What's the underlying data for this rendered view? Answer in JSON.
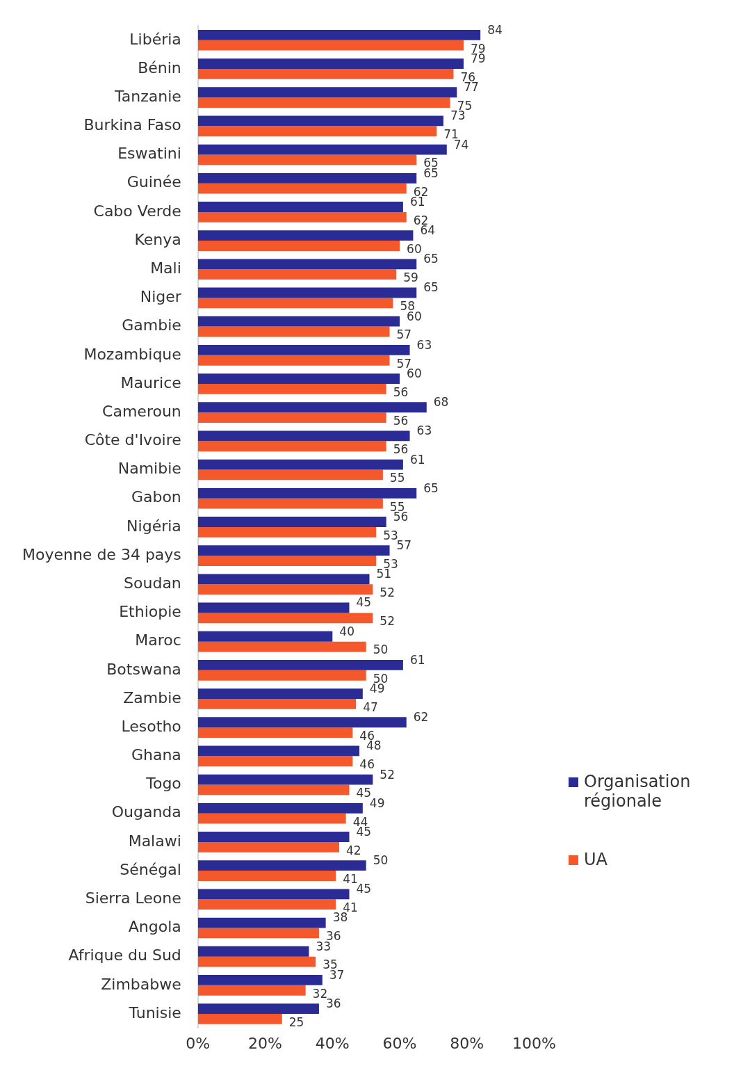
{
  "chart_data": {
    "type": "bar",
    "orientation": "horizontal",
    "categories": [
      "Libéria",
      "Bénin",
      "Tanzanie",
      "Burkina Faso",
      "Eswatini",
      "Guinée",
      "Cabo Verde",
      "Kenya",
      "Mali",
      "Niger",
      "Gambie",
      "Mozambique",
      "Maurice",
      "Cameroun",
      "Côte d'Ivoire",
      "Namibie",
      "Gabon",
      "Nigéria",
      "Moyenne de 34 pays",
      "Soudan",
      "Ethiopie",
      "Maroc",
      "Botswana",
      "Zambie",
      "Lesotho",
      "Ghana",
      "Togo",
      "Ouganda",
      "Malawi",
      "Sénégal",
      "Sierra Leone",
      "Angola",
      "Afrique du Sud",
      "Zimbabwe",
      "Tunisie"
    ],
    "series": [
      {
        "name": "Organisation régionale",
        "color": "#2b2b96",
        "values": [
          84,
          79,
          77,
          73,
          74,
          65,
          61,
          64,
          65,
          65,
          60,
          63,
          60,
          68,
          63,
          61,
          65,
          56,
          57,
          51,
          45,
          40,
          61,
          49,
          62,
          48,
          52,
          49,
          45,
          50,
          45,
          38,
          33,
          37,
          36
        ]
      },
      {
        "name": "UA",
        "color": "#f4582b",
        "values": [
          79,
          76,
          75,
          71,
          65,
          62,
          62,
          60,
          59,
          58,
          57,
          57,
          56,
          56,
          56,
          55,
          55,
          53,
          53,
          52,
          52,
          50,
          50,
          47,
          46,
          46,
          45,
          44,
          42,
          41,
          41,
          36,
          35,
          32,
          25
        ]
      }
    ],
    "xlim": [
      0,
      100
    ],
    "xticks": [
      {
        "value": 0,
        "label": "0%"
      },
      {
        "value": 20,
        "label": "20%"
      },
      {
        "value": 40,
        "label": "40%"
      },
      {
        "value": 60,
        "label": "60%"
      },
      {
        "value": 80,
        "label": "80%"
      },
      {
        "value": 100,
        "label": "100%"
      }
    ],
    "grid": false,
    "legend": "right",
    "data_labels": true
  }
}
